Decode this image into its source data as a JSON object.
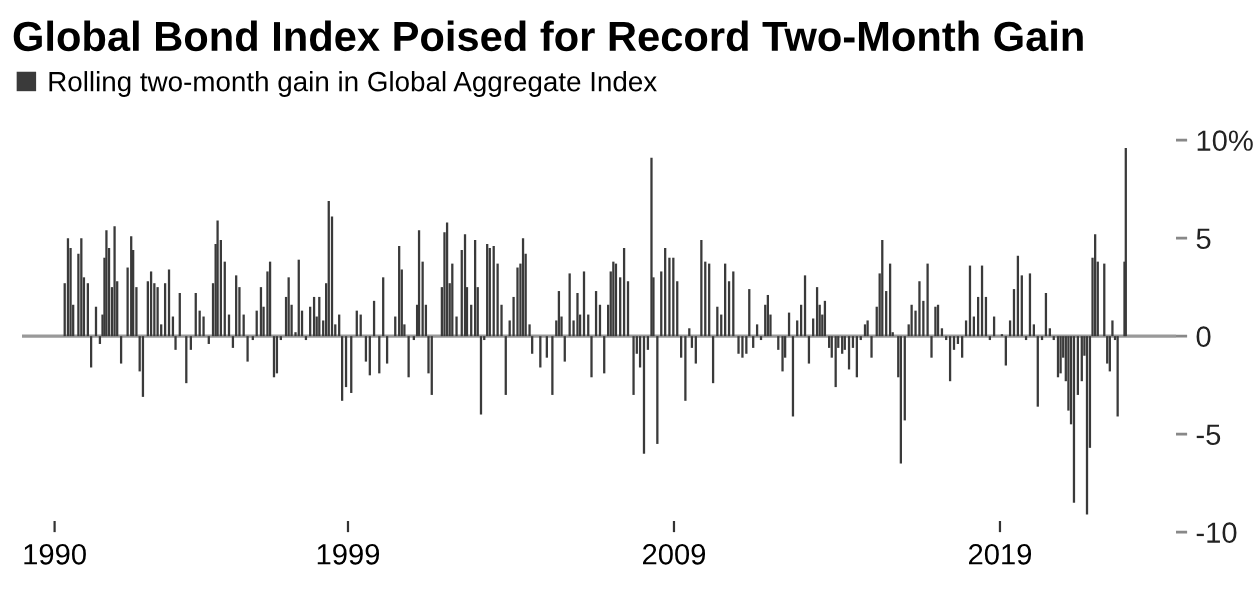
{
  "chart_data": {
    "type": "bar",
    "title": "Global Bond Index Poised for Record Two-Month Gain",
    "x": [
      1990.31,
      1990.41,
      1990.49,
      1990.57,
      1990.65,
      1990.73,
      1990.82,
      1990.9,
      1991.02,
      1991.12,
      1991.27,
      1991.39,
      1991.47,
      1991.53,
      1991.59,
      1991.67,
      1991.76,
      1991.84,
      1991.92,
      1992.04,
      1992.14,
      1992.24,
      1992.35,
      1992.41,
      1992.51,
      1992.61,
      1992.71,
      1992.86,
      1992.96,
      1993.06,
      1993.16,
      1993.27,
      1993.39,
      1993.51,
      1993.63,
      1993.71,
      1993.84,
      1994.04,
      1994.18,
      1994.33,
      1994.45,
      1994.57,
      1994.73,
      1994.86,
      1994.94,
      1995.0,
      1995.1,
      1995.22,
      1995.35,
      1995.47,
      1995.57,
      1995.67,
      1995.8,
      1995.92,
      1996.08,
      1996.2,
      1996.33,
      1996.41,
      1996.53,
      1996.61,
      1996.73,
      1996.82,
      1996.94,
      1997.1,
      1997.18,
      1997.27,
      1997.39,
      1997.49,
      1997.59,
      1997.71,
      1997.84,
      1997.96,
      1998.04,
      1998.12,
      1998.24,
      1998.33,
      1998.41,
      1998.51,
      1998.61,
      1998.73,
      1998.82,
      1998.94,
      1999.1,
      1999.27,
      1999.39,
      1999.55,
      1999.67,
      1999.8,
      1999.96,
      2000.08,
      2000.2,
      2000.33,
      2000.45,
      2000.57,
      2000.65,
      2000.73,
      2000.86,
      2001.02,
      2001.12,
      2001.18,
      2001.29,
      2001.39,
      2001.47,
      2001.57,
      2001.73,
      2001.88,
      2001.96,
      2002.04,
      2002.12,
      2002.2,
      2002.33,
      2002.49,
      2002.59,
      2002.65,
      2002.78,
      2002.9,
      2002.98,
      2003.08,
      2003.18,
      2003.27,
      2003.35,
      2003.47,
      2003.59,
      2003.71,
      2003.84,
      2003.96,
      2004.08,
      2004.2,
      2004.29,
      2004.37,
      2004.45,
      2004.57,
      2004.65,
      2004.78,
      2004.9,
      2005.02,
      2005.1,
      2005.27,
      2005.39,
      2005.47,
      2005.55,
      2005.65,
      2005.8,
      2005.92,
      2006.04,
      2006.12,
      2006.24,
      2006.37,
      2006.47,
      2006.61,
      2006.73,
      2006.86,
      2006.98,
      2007.06,
      2007.14,
      2007.22,
      2007.35,
      2007.47,
      2007.59,
      2007.76,
      2007.86,
      2007.96,
      2008.08,
      2008.2,
      2008.31,
      2008.37,
      2008.49,
      2008.61,
      2008.73,
      2008.86,
      2008.98,
      2009.1,
      2009.22,
      2009.35,
      2009.47,
      2009.55,
      2009.67,
      2009.84,
      2009.96,
      2010.08,
      2010.2,
      2010.33,
      2010.45,
      2010.57,
      2010.69,
      2010.82,
      2010.98,
      2011.1,
      2011.22,
      2011.31,
      2011.43,
      2011.55,
      2011.67,
      2011.8,
      2011.88,
      2011.96,
      2012.08,
      2012.2,
      2012.33,
      2012.41,
      2012.53,
      2012.65,
      2012.78,
      2012.9,
      2013.02,
      2013.14,
      2013.27,
      2013.39,
      2013.47,
      2013.55,
      2013.63,
      2013.76,
      2013.84,
      2013.96,
      2014.04,
      2014.16,
      2014.24,
      2014.37,
      2014.49,
      2014.61,
      2014.73,
      2014.86,
      2014.94,
      2015.06,
      2015.14,
      2015.22,
      2015.31,
      2015.39,
      2015.51,
      2015.63,
      2015.71,
      2015.88,
      2015.96,
      2016.08,
      2016.2,
      2016.29,
      2016.41,
      2016.53,
      2016.65,
      2016.78,
      2016.9,
      2017.02,
      2017.1,
      2017.22,
      2017.35,
      2017.47,
      2017.59,
      2017.71,
      2017.84,
      2017.96,
      2018.08,
      2018.2,
      2018.33,
      2018.45,
      2018.57,
      2018.69,
      2018.82,
      2018.94,
      2019.06,
      2019.18,
      2019.31,
      2019.43,
      2019.55,
      2019.67,
      2019.8,
      2019.92,
      2020.04,
      2020.16,
      2020.29,
      2020.41,
      2020.53,
      2020.65,
      2020.78,
      2020.86,
      2020.94,
      2021.02,
      2021.1,
      2021.18,
      2021.27,
      2021.39,
      2021.51,
      2021.59,
      2021.67,
      2021.76,
      2021.84,
      2021.92,
      2022.0,
      2022.08,
      2022.2,
      2022.29,
      2022.37,
      2022.45,
      2022.53,
      2022.61,
      2022.82,
      2022.86
    ],
    "series": [
      {
        "name": "Rolling two-month gain in Global Aggregate Index",
        "color": "#3a3a3a",
        "values": [
          2.7,
          5.0,
          4.5,
          1.6,
          0,
          4.2,
          5.0,
          3.0,
          2.7,
          -1.6,
          1.5,
          -0.4,
          1.1,
          4.0,
          5.4,
          4.5,
          2.5,
          5.6,
          2.8,
          -1.4,
          0,
          3.5,
          5.1,
          4.4,
          2.5,
          -1.8,
          -3.1,
          2.8,
          3.3,
          2.7,
          2.5,
          0.6,
          2.7,
          3.4,
          1.0,
          -0.7,
          2.2,
          -2.4,
          -0.7,
          2.2,
          1.3,
          1.0,
          -0.4,
          2.7,
          4.7,
          5.9,
          4.9,
          3.8,
          1.1,
          -0.6,
          3.1,
          2.5,
          1.1,
          -1.3,
          -0.2,
          1.3,
          2.5,
          1.5,
          3.3,
          3.8,
          -2.1,
          -1.9,
          -0.2,
          2.0,
          3.0,
          1.6,
          0.2,
          3.9,
          1.3,
          -0.2,
          1.5,
          2.0,
          1.0,
          2.0,
          0.8,
          2.7,
          6.9,
          6.1,
          0.6,
          1.1,
          -3.3,
          -2.6,
          -2.9,
          1.3,
          1.1,
          -1.3,
          -2.0,
          1.8,
          -1.9,
          3.0,
          -1.4,
          0,
          1.0,
          4.6,
          3.4,
          0.6,
          -2.1,
          -0.2,
          1.6,
          5.4,
          3.8,
          1.6,
          -1.9,
          -3.0,
          0,
          2.5,
          5.3,
          5.8,
          2.7,
          3.7,
          1.0,
          4.4,
          5.2,
          2.5,
          1.6,
          4.9,
          2.5,
          -4.0,
          -0.2,
          4.7,
          4.5,
          4.6,
          3.7,
          1.6,
          -3.0,
          0.8,
          2.0,
          3.5,
          3.7,
          5.0,
          4.2,
          0.6,
          -0.9,
          0,
          -1.6,
          0,
          -1.1,
          -3.0,
          0.8,
          2.3,
          1.0,
          -1.3,
          3.2,
          0.8,
          2.2,
          1.1,
          3.3,
          1.1,
          -2.1,
          2.3,
          1.6,
          -1.9,
          1.6,
          3.3,
          3.8,
          3.7,
          3.0,
          4.5,
          2.8,
          -3.0,
          -0.9,
          -1.6,
          -6.0,
          -0.7,
          9.1,
          3.0,
          -5.5,
          3.3,
          4.5,
          4.0,
          4.0,
          2.8,
          -1.1,
          -3.3,
          0.4,
          -0.6,
          -1.4,
          4.9,
          3.8,
          3.7,
          -2.4,
          1.5,
          1.1,
          3.7,
          2.8,
          3.3,
          -0.9,
          -1.1,
          -0.9,
          2.4,
          -0.6,
          0.6,
          -0.2,
          1.6,
          2.1,
          1.1,
          0,
          -0.7,
          -1.8,
          -1.1,
          1.2,
          -4.1,
          0.8,
          1.6,
          3.1,
          -1.4,
          0.9,
          2.5,
          1.6,
          1.1,
          1.8,
          -0.6,
          -1.1,
          -2.6,
          -0.6,
          -0.9,
          -0.7,
          -1.7,
          -0.6,
          -2.1,
          -0.2,
          0.6,
          0.8,
          -1.1,
          0,
          1.5,
          3.2,
          4.9,
          2.3,
          3.7,
          0.2,
          -2.1,
          -6.5,
          -4.3,
          0.6,
          1.6,
          1.3,
          2.8,
          1.8,
          3.7,
          -1.1,
          1.5,
          1.6,
          0.4,
          -0.2,
          -2.3,
          -0.7,
          -0.4,
          -1.1,
          0.8,
          3.6,
          1.0,
          2.0,
          3.6,
          2.0,
          -0.2,
          1.0,
          0,
          0.1,
          -1.5,
          0.8,
          2.4,
          4.1,
          3.1,
          -0.2,
          3.2,
          0.6,
          -3.6,
          -0.2,
          2.2,
          0.4,
          -0.2,
          -2.1,
          -1.9,
          -1.1,
          -2.3,
          -3.8,
          -4.5,
          -8.5,
          -3.0,
          -2.3,
          -1.0,
          -9.1,
          -5.7,
          4.0,
          5.2,
          3.8,
          0,
          3.7,
          -1.4,
          -1.8,
          0.8,
          -0.2,
          -4.1,
          3.8,
          9.6
        ]
      }
    ],
    "xlim": [
      1989.0,
      2024.4
    ],
    "xticks": [
      1990,
      1999,
      2009,
      2019
    ],
    "ylim": [
      -10,
      10
    ],
    "yticks": [
      {
        "value": 10,
        "label": "10%"
      },
      5,
      0,
      {
        "value": -5,
        "label": "-5"
      },
      {
        "value": -10,
        "label": "-10"
      }
    ],
    "ref_lines": [
      {
        "axis": "y",
        "value": 0,
        "color": "#999999"
      }
    ],
    "legend": "top left"
  }
}
